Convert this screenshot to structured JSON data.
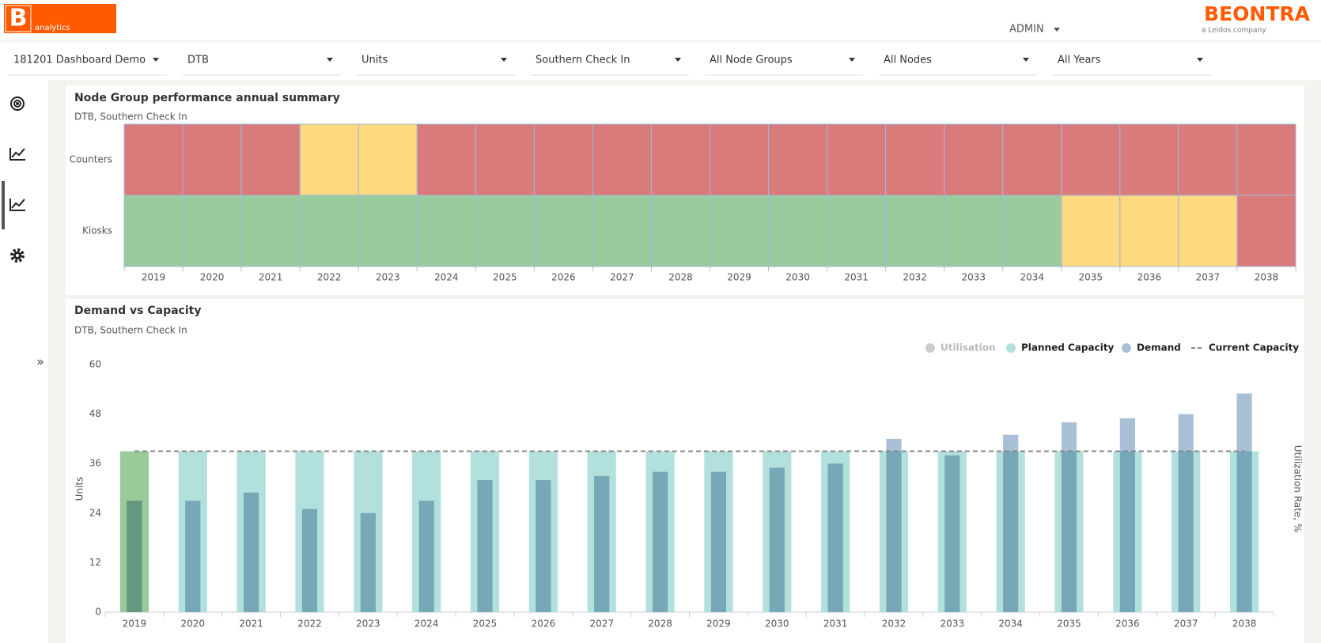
{
  "header": {
    "logo_letter": "B",
    "logo_text": "analytics",
    "user": "ADMIN",
    "brand": "BEONTRA",
    "brand_tagline": "a Leidos company"
  },
  "filters": [
    "181201 Dashboard Demo",
    "DTB",
    "Units",
    "Southern Check In",
    "All Node Groups",
    "All Nodes",
    "All Years"
  ],
  "sidebar": {
    "expand": "»"
  },
  "chart_data": [
    {
      "type": "heatmap",
      "title": "Node Group performance annual summary",
      "subtitle": "DTB, Southern Check In",
      "rows": [
        "Counters",
        "Kiosks"
      ],
      "categories": [
        "2019",
        "2020",
        "2021",
        "2022",
        "2023",
        "2024",
        "2025",
        "2026",
        "2027",
        "2028",
        "2029",
        "2030",
        "2031",
        "2032",
        "2033",
        "2034",
        "2035",
        "2036",
        "2037",
        "2038"
      ],
      "colors": [
        [
          "#d97b7b",
          "#d97b7b",
          "#d97b7b",
          "#fdd97f",
          "#fdd97f",
          "#d97b7b",
          "#d97b7b",
          "#d97b7b",
          "#d97b7b",
          "#d97b7b",
          "#d97b7b",
          "#d97b7b",
          "#d97b7b",
          "#d97b7b",
          "#d97b7b",
          "#d97b7b",
          "#d97b7b",
          "#d97b7b",
          "#d97b7b",
          "#d97b7b"
        ],
        [
          "#99cc9c",
          "#99cc9c",
          "#99cc9c",
          "#99cc9c",
          "#99cc9c",
          "#99cc9c",
          "#99cc9c",
          "#99cc9c",
          "#99cc9c",
          "#99cc9c",
          "#99cc9c",
          "#99cc9c",
          "#99cc9c",
          "#99cc9c",
          "#99cc9c",
          "#99cc9c",
          "#fdd97f",
          "#fdd97f",
          "#fdd97f",
          "#d97b7b"
        ]
      ]
    },
    {
      "type": "bar",
      "title": "Demand vs Capacity",
      "subtitle": "DTB, Southern Check In",
      "y_label": "Units",
      "y2_label": "Utilization Rate, %",
      "categories": [
        "2019",
        "2020",
        "2021",
        "2022",
        "2023",
        "2024",
        "2025",
        "2026",
        "2027",
        "2028",
        "2029",
        "2030",
        "2031",
        "2032",
        "2033",
        "2034",
        "2035",
        "2036",
        "2037",
        "2038"
      ],
      "ylim": [
        0,
        60
      ],
      "yticks": [
        0,
        12,
        24,
        36,
        48,
        60
      ],
      "grid": false,
      "series": [
        {
          "name": "Utilisation",
          "color": "#cccccc",
          "axis": "y2",
          "visible": false,
          "values": [
            null,
            null,
            null,
            null,
            null,
            null,
            null,
            null,
            null,
            null,
            null,
            null,
            null,
            null,
            null,
            null,
            null,
            null,
            null,
            null
          ]
        },
        {
          "name": "Planned Capacity",
          "color": "#b2e0dc",
          "type": "bar",
          "colors": [
            "#98ca9a",
            "#b2e0dc",
            "#b2e0dc",
            "#b2e0dc",
            "#b2e0dc",
            "#b2e0dc",
            "#b2e0dc",
            "#b2e0dc",
            "#b2e0dc",
            "#b2e0dc",
            "#b2e0dc",
            "#b2e0dc",
            "#b2e0dc",
            "#b2e0dc",
            "#b2e0dc",
            "#b2e0dc",
            "#b2e0dc",
            "#b2e0dc",
            "#b2e0dc",
            "#b2e0dc"
          ],
          "values": [
            39,
            39,
            39,
            39,
            39,
            39,
            39,
            39,
            39,
            39,
            39,
            39,
            39,
            39,
            39,
            39,
            39,
            39,
            39,
            39
          ]
        },
        {
          "name": "Demand",
          "color": "#a9bfd6",
          "type": "bar",
          "values": [
            27,
            27,
            29,
            25,
            24,
            27,
            32,
            32,
            33,
            34,
            34,
            35,
            36,
            42,
            38,
            43,
            46,
            47,
            48,
            53
          ]
        },
        {
          "name": "Current Capacity",
          "color": "#888888",
          "type": "line",
          "dashed": true,
          "values": [
            39,
            39,
            39,
            39,
            39,
            39,
            39,
            39,
            39,
            39,
            39,
            39,
            39,
            39,
            39,
            39,
            39,
            39,
            39,
            39
          ]
        }
      ]
    }
  ]
}
